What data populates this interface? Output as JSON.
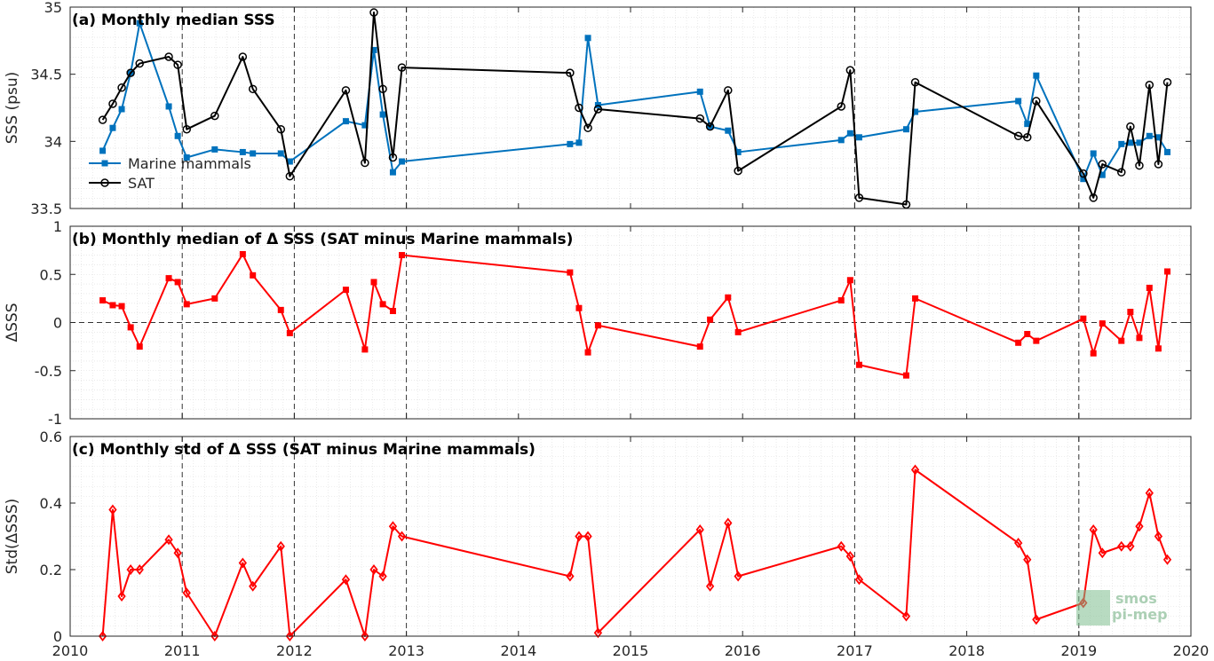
{
  "chart_data": [
    {
      "type": "line",
      "title": "(a) Monthly median SSS",
      "ylabel": "SSS (psu)",
      "xlim": [
        2010,
        2020
      ],
      "ylim": [
        33.5,
        35
      ],
      "yticks": [
        33.5,
        34,
        34.5,
        35
      ],
      "ytick_labels": [
        "33.5",
        "34",
        "34.5",
        "35"
      ],
      "grid": true,
      "year_markers": [
        2011,
        2012,
        2013,
        2017,
        2019
      ],
      "legend_position": "left",
      "series": [
        {
          "name": "Marine mammals",
          "color": "#0072BD",
          "marker": "square",
          "x": [
            2010.29,
            2010.38,
            2010.46,
            2010.54,
            2010.62,
            2010.88,
            2010.96,
            2011.04,
            2011.29,
            2011.54,
            2011.63,
            2011.88,
            2011.96,
            2012.46,
            2012.63,
            2012.71,
            2012.79,
            2012.88,
            2012.96,
            2014.46,
            2014.54,
            2014.62,
            2014.71,
            2015.62,
            2015.71,
            2015.87,
            2015.96,
            2016.88,
            2016.96,
            2017.04,
            2017.46,
            2017.54,
            2018.46,
            2018.54,
            2018.62,
            2019.04,
            2019.13,
            2019.21,
            2019.38,
            2019.46,
            2019.54,
            2019.63,
            2019.71,
            2019.79
          ],
          "y": [
            33.93,
            34.1,
            34.24,
            34.51,
            34.88,
            34.26,
            34.04,
            33.88,
            33.94,
            33.92,
            33.91,
            33.91,
            33.85,
            34.15,
            34.12,
            34.68,
            34.2,
            33.77,
            33.85,
            33.98,
            33.99,
            34.77,
            34.27,
            34.37,
            34.11,
            34.08,
            33.92,
            34.01,
            34.06,
            34.03,
            34.09,
            34.22,
            34.3,
            34.13,
            34.49,
            33.72,
            33.91,
            33.75,
            33.98,
            33.99,
            33.99,
            34.04,
            34.03,
            33.92
          ]
        },
        {
          "name": "SAT",
          "color": "#000000",
          "marker": "circle",
          "x": [
            2010.29,
            2010.38,
            2010.46,
            2010.54,
            2010.62,
            2010.88,
            2010.96,
            2011.04,
            2011.29,
            2011.54,
            2011.63,
            2011.88,
            2011.96,
            2012.46,
            2012.63,
            2012.71,
            2012.79,
            2012.88,
            2012.96,
            2014.46,
            2014.54,
            2014.62,
            2014.71,
            2015.62,
            2015.71,
            2015.87,
            2015.96,
            2016.88,
            2016.96,
            2017.04,
            2017.46,
            2017.54,
            2018.46,
            2018.54,
            2018.62,
            2019.04,
            2019.13,
            2019.21,
            2019.38,
            2019.46,
            2019.54,
            2019.63,
            2019.71,
            2019.79
          ],
          "y": [
            34.16,
            34.28,
            34.4,
            34.51,
            34.58,
            34.63,
            34.57,
            34.09,
            34.19,
            34.63,
            34.39,
            34.09,
            33.74,
            34.38,
            33.84,
            34.96,
            34.39,
            33.88,
            34.55,
            34.51,
            34.25,
            34.1,
            34.24,
            34.17,
            34.11,
            34.38,
            33.78,
            34.26,
            34.53,
            33.58,
            33.53,
            34.44,
            34.04,
            34.03,
            34.3,
            33.76,
            33.58,
            33.83,
            33.77,
            34.11,
            33.82,
            34.42,
            33.83,
            34.44
          ]
        }
      ]
    },
    {
      "type": "line",
      "title": "(b) Monthly median of Δ SSS (SAT minus Marine mammals)",
      "ylabel": "ΔSSS",
      "xlim": [
        2010,
        2020
      ],
      "ylim": [
        -1,
        1
      ],
      "yticks": [
        -1,
        -0.5,
        0,
        0.5,
        1
      ],
      "ytick_labels": [
        "-1",
        "-0.5",
        "0",
        "0.5",
        "1"
      ],
      "grid": true,
      "zero_line": true,
      "year_markers": [
        2011,
        2012,
        2013,
        2017,
        2019
      ],
      "series": [
        {
          "color": "#FF0000",
          "marker": "square",
          "x": [
            2010.29,
            2010.38,
            2010.46,
            2010.54,
            2010.62,
            2010.88,
            2010.96,
            2011.04,
            2011.29,
            2011.54,
            2011.63,
            2011.88,
            2011.96,
            2012.46,
            2012.63,
            2012.71,
            2012.79,
            2012.88,
            2012.96,
            2014.46,
            2014.54,
            2014.62,
            2014.71,
            2015.62,
            2015.71,
            2015.87,
            2015.96,
            2016.88,
            2016.96,
            2017.04,
            2017.46,
            2017.54,
            2018.46,
            2018.54,
            2018.62,
            2019.04,
            2019.13,
            2019.21,
            2019.38,
            2019.46,
            2019.54,
            2019.63,
            2019.71,
            2019.79
          ],
          "y": [
            0.23,
            0.18,
            0.17,
            -0.05,
            -0.25,
            0.46,
            0.42,
            0.19,
            0.25,
            0.71,
            0.49,
            0.13,
            -0.11,
            0.34,
            -0.28,
            0.42,
            0.19,
            0.12,
            0.7,
            0.52,
            0.15,
            -0.31,
            -0.03,
            -0.25,
            0.03,
            0.26,
            -0.1,
            0.23,
            0.44,
            -0.44,
            -0.55,
            0.25,
            -0.21,
            -0.12,
            -0.19,
            0.04,
            -0.32,
            -0.01,
            -0.19,
            0.11,
            -0.16,
            0.36,
            -0.27,
            0.53
          ]
        }
      ]
    },
    {
      "type": "line",
      "title": "(c) Monthly std of Δ SSS (SAT minus Marine mammals)",
      "ylabel": "Std(ΔSSS)",
      "xlabel": "",
      "xlim": [
        2010,
        2020
      ],
      "ylim": [
        0,
        0.6
      ],
      "yticks": [
        0,
        0.2,
        0.4,
        0.6
      ],
      "ytick_labels": [
        "0",
        "0.2",
        "0.4",
        "0.6"
      ],
      "xticks": [
        2010,
        2011,
        2012,
        2013,
        2014,
        2015,
        2016,
        2017,
        2018,
        2019,
        2020
      ],
      "xtick_labels": [
        "2010",
        "2011",
        "2012",
        "2013",
        "2014",
        "2015",
        "2016",
        "2017",
        "2018",
        "2019",
        "2020"
      ],
      "grid": true,
      "year_markers": [
        2011,
        2012,
        2013,
        2017,
        2019
      ],
      "series": [
        {
          "color": "#FF0000",
          "marker": "diamond",
          "x": [
            2010.29,
            2010.38,
            2010.46,
            2010.54,
            2010.62,
            2010.88,
            2010.96,
            2011.04,
            2011.29,
            2011.54,
            2011.63,
            2011.88,
            2011.96,
            2012.46,
            2012.63,
            2012.71,
            2012.79,
            2012.88,
            2012.96,
            2014.46,
            2014.54,
            2014.62,
            2014.71,
            2015.62,
            2015.71,
            2015.87,
            2015.96,
            2016.88,
            2016.96,
            2017.04,
            2017.46,
            2017.54,
            2018.46,
            2018.54,
            2018.62,
            2019.04,
            2019.13,
            2019.21,
            2019.38,
            2019.46,
            2019.54,
            2019.63,
            2019.71,
            2019.79
          ],
          "y": [
            0.0,
            0.38,
            0.12,
            0.2,
            0.2,
            0.29,
            0.25,
            0.13,
            0.0,
            0.22,
            0.15,
            0.27,
            0.0,
            0.17,
            0.0,
            0.2,
            0.18,
            0.33,
            0.3,
            0.18,
            0.3,
            0.3,
            0.01,
            0.32,
            0.15,
            0.34,
            0.18,
            0.27,
            0.24,
            0.17,
            0.06,
            0.5,
            0.28,
            0.23,
            0.05,
            0.1,
            0.32,
            0.25,
            0.27,
            0.27,
            0.33,
            0.43,
            0.3,
            0.23
          ]
        }
      ]
    }
  ],
  "logo": {
    "line1": "smos",
    "line2": "pi-mep"
  }
}
